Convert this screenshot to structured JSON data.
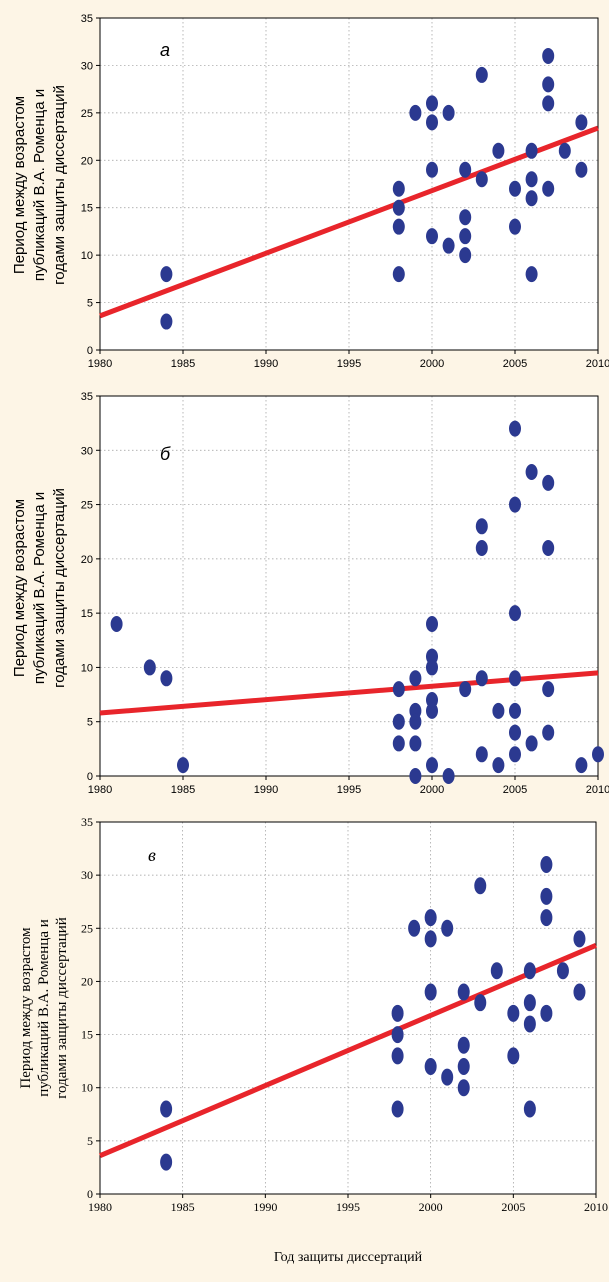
{
  "chart_data": [
    {
      "type": "scatter",
      "panel_label": "а",
      "ylabel_lines": [
        "Период между возрастом",
        "публикаций В.А. Роменца и",
        "годами защиты диссертаций"
      ],
      "xlabel": "",
      "xlim": [
        1980,
        2010
      ],
      "ylim": [
        0,
        35
      ],
      "xticks": [
        1980,
        1985,
        1990,
        1995,
        2000,
        2005,
        2010
      ],
      "yticks": [
        0,
        5,
        10,
        15,
        20,
        25,
        30,
        35
      ],
      "grid": true,
      "point_color": "#2b3990",
      "line_color": "#e8252b",
      "points": [
        [
          1984,
          8
        ],
        [
          1984,
          3
        ],
        [
          1998,
          17
        ],
        [
          1998,
          15
        ],
        [
          1998,
          13
        ],
        [
          1998,
          8
        ],
        [
          1999,
          25
        ],
        [
          2000,
          26
        ],
        [
          2000,
          24
        ],
        [
          2000,
          19
        ],
        [
          2000,
          12
        ],
        [
          2001,
          25
        ],
        [
          2001,
          11
        ],
        [
          2002,
          19
        ],
        [
          2002,
          14
        ],
        [
          2002,
          12
        ],
        [
          2002,
          10
        ],
        [
          2003,
          29
        ],
        [
          2003,
          18
        ],
        [
          2004,
          21
        ],
        [
          2005,
          17
        ],
        [
          2005,
          13
        ],
        [
          2006,
          21
        ],
        [
          2006,
          18
        ],
        [
          2006,
          16
        ],
        [
          2006,
          8
        ],
        [
          2007,
          31
        ],
        [
          2007,
          28
        ],
        [
          2007,
          26
        ],
        [
          2007,
          17
        ],
        [
          2008,
          21
        ],
        [
          2009,
          24
        ],
        [
          2009,
          19
        ]
      ],
      "trend_line": [
        [
          1980,
          3.6
        ],
        [
          2010,
          23.4
        ]
      ]
    },
    {
      "type": "scatter",
      "panel_label": "б",
      "ylabel_lines": [
        "Период между возрастом",
        "публикаций В.А. Роменца и",
        "годами защиты диссертаций"
      ],
      "xlabel": "",
      "xlim": [
        1980,
        2010
      ],
      "ylim": [
        0,
        35
      ],
      "xticks": [
        1980,
        1985,
        1990,
        1995,
        2000,
        2005,
        2010
      ],
      "yticks": [
        0,
        5,
        10,
        15,
        20,
        25,
        30,
        35
      ],
      "grid": true,
      "point_color": "#2b3990",
      "line_color": "#e8252b",
      "points": [
        [
          1981,
          14
        ],
        [
          1983,
          10
        ],
        [
          1984,
          9
        ],
        [
          1985,
          1
        ],
        [
          1998,
          8
        ],
        [
          1998,
          5
        ],
        [
          1998,
          3
        ],
        [
          1999,
          9
        ],
        [
          1999,
          6
        ],
        [
          1999,
          5
        ],
        [
          1999,
          3
        ],
        [
          1999,
          0
        ],
        [
          2000,
          14
        ],
        [
          2000,
          11
        ],
        [
          2000,
          10
        ],
        [
          2000,
          7
        ],
        [
          2000,
          6
        ],
        [
          2000,
          1
        ],
        [
          2001,
          0
        ],
        [
          2002,
          8
        ],
        [
          2003,
          23
        ],
        [
          2003,
          21
        ],
        [
          2003,
          9
        ],
        [
          2003,
          2
        ],
        [
          2004,
          6
        ],
        [
          2004,
          1
        ],
        [
          2005,
          32
        ],
        [
          2005,
          25
        ],
        [
          2005,
          15
        ],
        [
          2005,
          9
        ],
        [
          2005,
          6
        ],
        [
          2005,
          4
        ],
        [
          2005,
          2
        ],
        [
          2006,
          28
        ],
        [
          2006,
          3
        ],
        [
          2007,
          27
        ],
        [
          2007,
          21
        ],
        [
          2007,
          8
        ],
        [
          2007,
          4
        ],
        [
          2009,
          1
        ],
        [
          2010,
          2
        ]
      ],
      "trend_line": [
        [
          1980,
          5.8
        ],
        [
          2010,
          9.5
        ]
      ]
    },
    {
      "type": "scatter",
      "panel_label": "в",
      "ylabel_lines": [
        "Период между возрастом",
        "публикаций В.А. Роменца и",
        "годами защиты диссертаций"
      ],
      "xlabel": "Год защиты диссертаций",
      "xlim": [
        1980,
        2010
      ],
      "ylim": [
        0,
        35
      ],
      "xticks": [
        1980,
        1985,
        1990,
        1995,
        2000,
        2005,
        2010
      ],
      "yticks": [
        0,
        5,
        10,
        15,
        20,
        25,
        30,
        35
      ],
      "grid": true,
      "point_color": "#2b3990",
      "line_color": "#e8252b",
      "points": [
        [
          1984,
          8
        ],
        [
          1984,
          3
        ],
        [
          1998,
          17
        ],
        [
          1998,
          15
        ],
        [
          1998,
          13
        ],
        [
          1998,
          8
        ],
        [
          1999,
          25
        ],
        [
          2000,
          26
        ],
        [
          2000,
          24
        ],
        [
          2000,
          19
        ],
        [
          2000,
          12
        ],
        [
          2001,
          25
        ],
        [
          2001,
          11
        ],
        [
          2002,
          19
        ],
        [
          2002,
          14
        ],
        [
          2002,
          12
        ],
        [
          2002,
          10
        ],
        [
          2003,
          29
        ],
        [
          2003,
          18
        ],
        [
          2004,
          21
        ],
        [
          2005,
          17
        ],
        [
          2005,
          13
        ],
        [
          2006,
          21
        ],
        [
          2006,
          18
        ],
        [
          2006,
          16
        ],
        [
          2006,
          8
        ],
        [
          2007,
          31
        ],
        [
          2007,
          28
        ],
        [
          2007,
          26
        ],
        [
          2007,
          17
        ],
        [
          2008,
          21
        ],
        [
          2009,
          24
        ],
        [
          2009,
          19
        ]
      ],
      "trend_line": [
        [
          1980,
          3.6
        ],
        [
          2010,
          23.4
        ]
      ]
    }
  ]
}
